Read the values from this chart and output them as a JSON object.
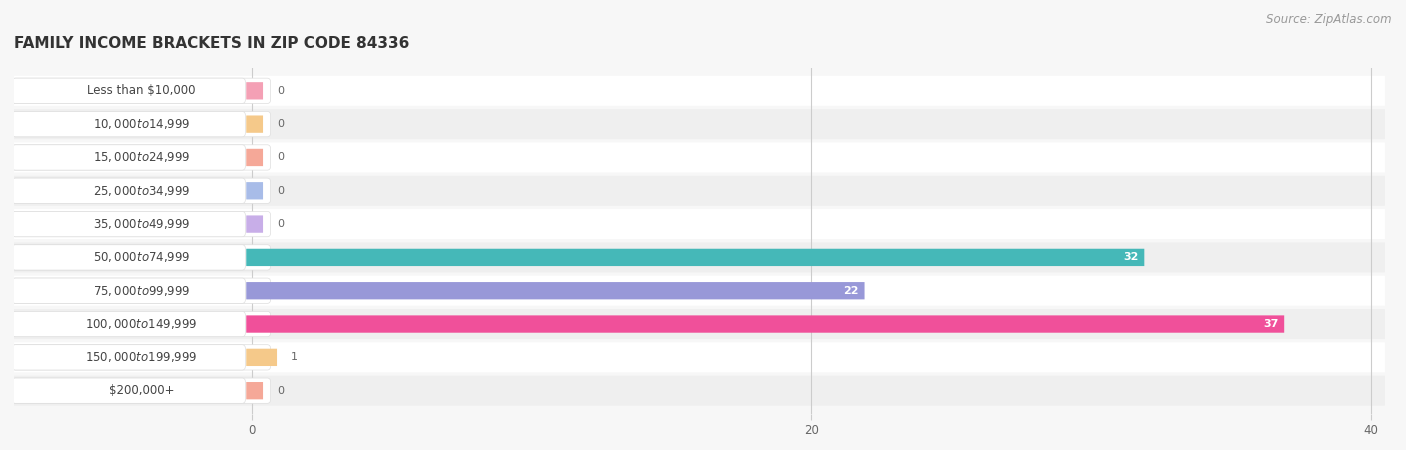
{
  "title": "FAMILY INCOME BRACKETS IN ZIP CODE 84336",
  "source": "Source: ZipAtlas.com",
  "categories": [
    "Less than $10,000",
    "$10,000 to $14,999",
    "$15,000 to $24,999",
    "$25,000 to $34,999",
    "$35,000 to $49,999",
    "$50,000 to $74,999",
    "$75,000 to $99,999",
    "$100,000 to $149,999",
    "$150,000 to $199,999",
    "$200,000+"
  ],
  "values": [
    0,
    0,
    0,
    0,
    0,
    32,
    22,
    37,
    1,
    0
  ],
  "bar_colors": [
    "#f4a0b5",
    "#f5c98a",
    "#f5a898",
    "#a8bce8",
    "#c8aee8",
    "#45b8b8",
    "#9898d8",
    "#f0509a",
    "#f5c98a",
    "#f5a898"
  ],
  "background_color": "#f7f7f7",
  "row_colors": [
    "#ffffff",
    "#efefef"
  ],
  "xlim_max": 40,
  "xticks": [
    0,
    20,
    40
  ],
  "title_fontsize": 11,
  "label_fontsize": 8.5,
  "value_fontsize": 8,
  "source_fontsize": 8.5,
  "grid_color": "#cccccc",
  "text_color": "#444444",
  "value_inside_color": "#ffffff",
  "value_outside_color": "#666666"
}
